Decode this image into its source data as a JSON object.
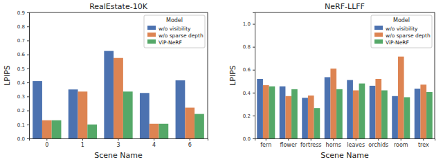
{
  "chart_data": [
    {
      "type": "bar",
      "title": "RealEstate-10K",
      "x_label": "Scene Name",
      "y_label": "LPIPS",
      "categories": [
        "0",
        "1",
        "3",
        "4",
        "6"
      ],
      "series": [
        {
          "name": "w/o visibility",
          "color": "#4c72b0",
          "values": [
            0.41,
            0.35,
            0.625,
            0.325,
            0.415
          ]
        },
        {
          "name": "w/o sparse depth",
          "color": "#dd8452",
          "values": [
            0.13,
            0.335,
            0.575,
            0.105,
            0.22
          ]
        },
        {
          "name": "ViP-NeRF",
          "color": "#55a868",
          "values": [
            0.13,
            0.1,
            0.335,
            0.105,
            0.175
          ]
        }
      ],
      "ylim": [
        0,
        0.9
      ],
      "yticks": [
        {
          "value": 0,
          "label": "0.0"
        },
        0.1,
        0.2,
        0.3,
        0.4,
        0.5,
        0.6,
        0.7,
        0.8,
        0.9
      ],
      "legend": "upper right",
      "legend_title": "Model",
      "grid": false
    },
    {
      "type": "bar",
      "title": "NeRF-LLFF",
      "x_label": "Scene Name",
      "y_label": "LPIPS",
      "categories": [
        "fern",
        "flower",
        "fortress",
        "horns",
        "leaves",
        "orchids",
        "room",
        "trex"
      ],
      "series": [
        {
          "name": "w/o visibility",
          "color": "#4c72b0",
          "values": [
            0.52,
            0.455,
            0.355,
            0.535,
            0.51,
            0.46,
            0.37,
            0.435
          ]
        },
        {
          "name": "w/o sparse depth",
          "color": "#dd8452",
          "values": [
            0.465,
            0.37,
            0.375,
            0.61,
            0.42,
            0.52,
            0.715,
            0.47
          ]
        },
        {
          "name": "ViP-NeRF",
          "color": "#55a868",
          "values": [
            0.455,
            0.43,
            0.265,
            0.43,
            0.48,
            0.42,
            0.36,
            0.405
          ]
        }
      ],
      "ylim": [
        0,
        1.1
      ],
      "yticks": [
        {
          "value": 0,
          "label": "0.0"
        },
        0.2,
        0.4,
        0.6,
        0.8,
        {
          "value": 1,
          "label": "1.0"
        }
      ],
      "legend": "upper right",
      "legend_title": "Model",
      "grid": false
    }
  ]
}
